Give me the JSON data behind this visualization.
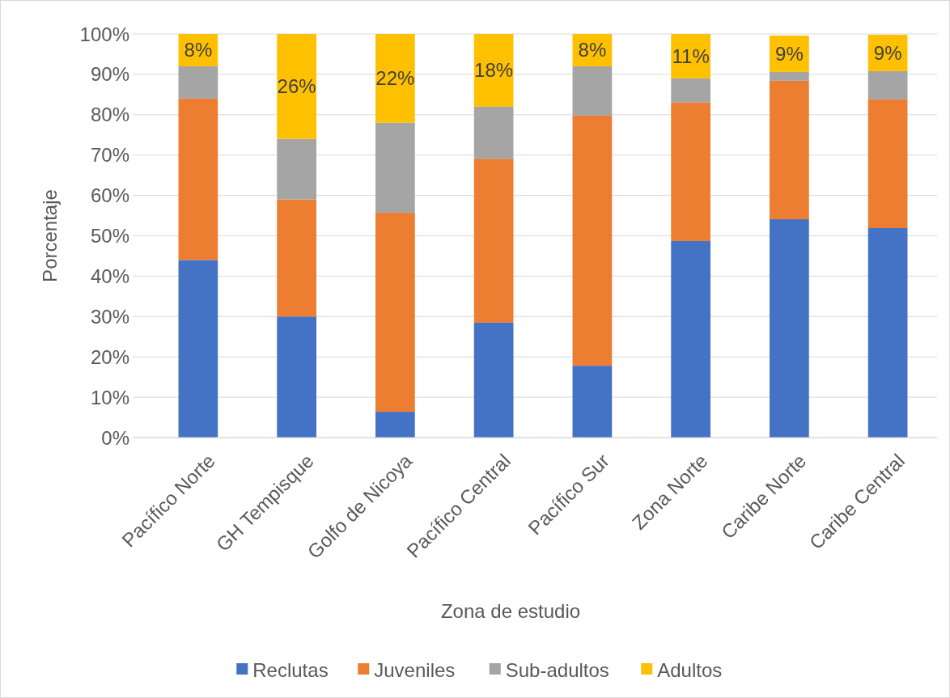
{
  "chart_data": {
    "type": "bar",
    "stacked": true,
    "xlabel": "Zona de estudio",
    "ylabel": "Porcentaje",
    "categories": [
      "Pacífico Norte",
      "GH Tempisque",
      "Golfo de Nicoya",
      "Pacífico Central",
      "Pacífico Sur",
      "Zona Norte",
      "Caribe Norte",
      "Caribe Central"
    ],
    "series": [
      {
        "name": "Reclutas",
        "color": "#4472c4",
        "values": [
          44,
          30,
          6.4,
          28.5,
          17.8,
          48.7,
          54.1,
          51.9
        ]
      },
      {
        "name": "Juveniles",
        "color": "#ed7d31",
        "values": [
          40,
          29,
          49.3,
          40.6,
          62,
          34.3,
          34.3,
          31.9
        ]
      },
      {
        "name": "Sub-adultos",
        "color": "#a5a5a5",
        "values": [
          8,
          15,
          22.3,
          12.9,
          12.2,
          6,
          2.2,
          7
        ]
      },
      {
        "name": "Adultos",
        "color": "#ffc000",
        "values": [
          8,
          26,
          22,
          18,
          8,
          11,
          9,
          9
        ],
        "value_labels": [
          "8%",
          "26%",
          "22%",
          "18%",
          "8%",
          "11%",
          "9%",
          "9%"
        ]
      }
    ],
    "ylim": [
      0,
      100
    ],
    "yticks": [
      {
        "value": 0,
        "label": "0%"
      },
      {
        "value": 10,
        "label": "10%"
      },
      {
        "value": 20,
        "label": "20%"
      },
      {
        "value": 30,
        "label": "30%"
      },
      {
        "value": 40,
        "label": "40%"
      },
      {
        "value": 50,
        "label": "50%"
      },
      {
        "value": 60,
        "label": "60%"
      },
      {
        "value": 70,
        "label": "70%"
      },
      {
        "value": 80,
        "label": "80%"
      },
      {
        "value": 90,
        "label": "90%"
      },
      {
        "value": 100,
        "label": "100%"
      }
    ],
    "grid": "y",
    "legend": "bottom"
  }
}
